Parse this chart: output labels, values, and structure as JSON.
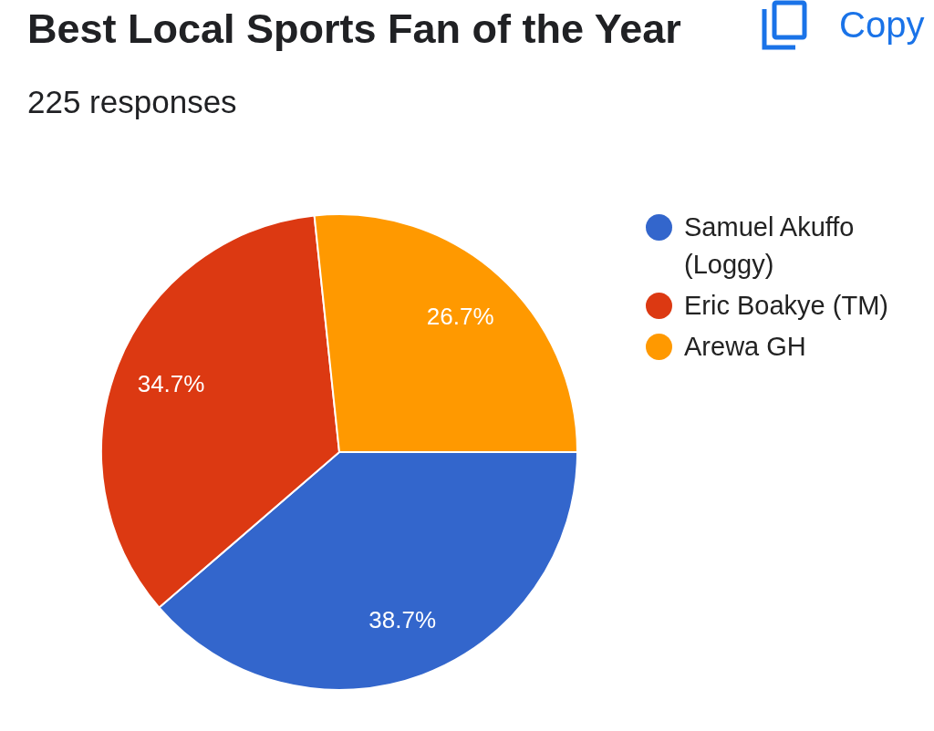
{
  "chart_data": {
    "type": "pie",
    "title": "Best Local Sports Fan of the Year",
    "subtitle": "225 responses",
    "categories": [
      "Samuel Akuffo (Loggy)",
      "Eric Boakye (TM)",
      "Arewa GH"
    ],
    "values": [
      38.7,
      34.7,
      26.7
    ],
    "colors": [
      "#3366cc",
      "#dc3912",
      "#ff9900"
    ],
    "value_labels": [
      "38.7%",
      "34.7%",
      "26.7%"
    ],
    "legend": "right",
    "annotations": [
      "Copy"
    ]
  }
}
